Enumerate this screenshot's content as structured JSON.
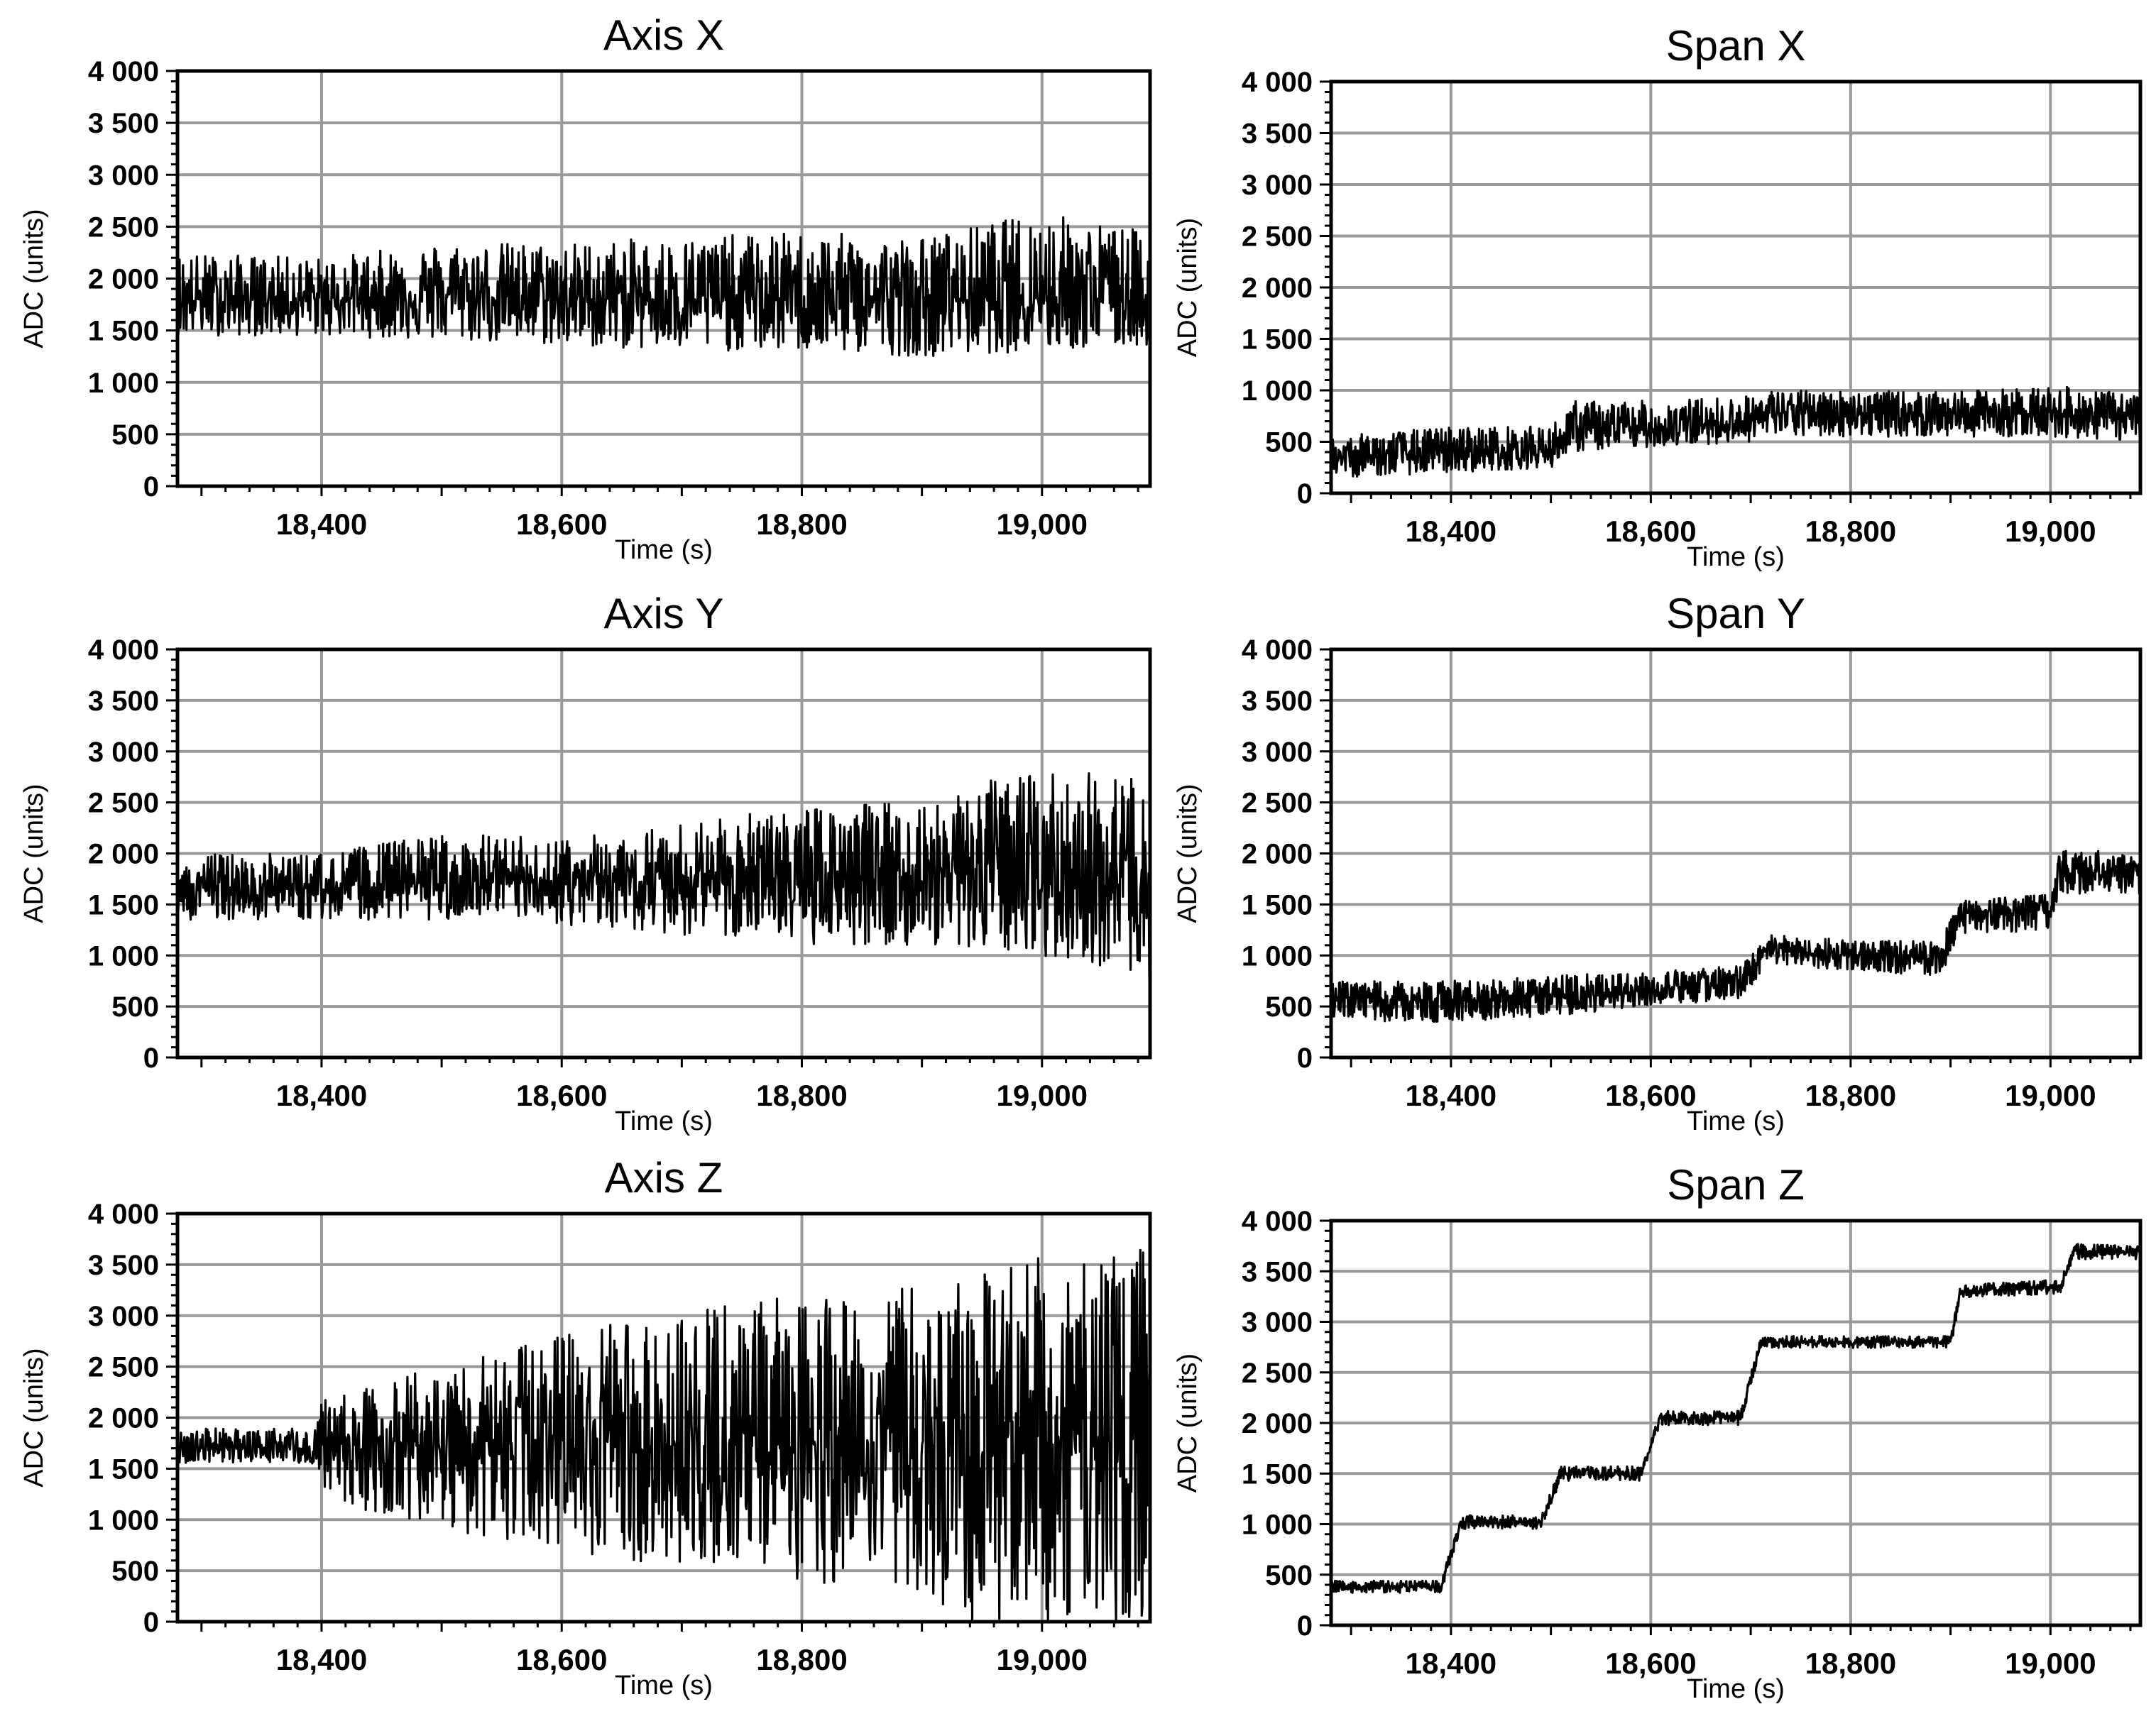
{
  "chart_data": [
    {
      "type": "line",
      "title": "Axis X",
      "xlabel": "Time (s)",
      "ylabel": "ADC (units)",
      "xlim": [
        18280,
        19090
      ],
      "ylim": [
        0,
        4000
      ],
      "grid": true,
      "xticks": [
        18400,
        18600,
        18800,
        19000
      ],
      "xtick_labels": [
        "18,400",
        "18,600",
        "18,800",
        "19,000"
      ],
      "yticks": [
        0,
        500,
        1000,
        1500,
        2000,
        2500,
        3000,
        3500,
        4000
      ],
      "ytick_labels": [
        "0",
        "500",
        "1 000",
        "1 500",
        "2 000",
        "2 500",
        "3 000",
        "3 500",
        "4 000"
      ],
      "series": [
        {
          "x": [
            18280,
            18400,
            18500,
            18600,
            18700,
            18800,
            18900,
            19000,
            19090
          ],
          "center": [
            1800,
            1800,
            1850,
            1800,
            1800,
            1800,
            1800,
            1850,
            1800
          ],
          "min": [
            1450,
            1450,
            1400,
            1350,
            1300,
            1300,
            1250,
            1300,
            1350
          ],
          "max": [
            2250,
            2200,
            2350,
            2350,
            2400,
            2450,
            2400,
            2650,
            2450
          ]
        }
      ]
    },
    {
      "type": "line",
      "title": "Span X",
      "xlabel": "Time (s)",
      "ylabel": "ADC (units)",
      "xlim": [
        18280,
        19090
      ],
      "ylim": [
        0,
        4000
      ],
      "grid": true,
      "xticks": [
        18400,
        18600,
        18800,
        19000
      ],
      "xtick_labels": [
        "18,400",
        "18,600",
        "18,800",
        "19,000"
      ],
      "yticks": [
        0,
        500,
        1000,
        1500,
        2000,
        2500,
        3000,
        3500,
        4000
      ],
      "ytick_labels": [
        "0",
        "500",
        "1 000",
        "1 500",
        "2 000",
        "2 500",
        "3 000",
        "3 500",
        "4 000"
      ],
      "series": [
        {
          "x": [
            18280,
            18400,
            18500,
            18520,
            18600,
            18700,
            18720,
            18800,
            18900,
            19000,
            19090
          ],
          "center": [
            330,
            400,
            420,
            600,
            620,
            700,
            780,
            780,
            770,
            780,
            720
          ],
          "min": [
            150,
            200,
            250,
            400,
            450,
            500,
            550,
            550,
            550,
            550,
            500
          ],
          "max": [
            550,
            650,
            650,
            900,
            900,
            950,
            1000,
            1000,
            980,
            1050,
            950
          ]
        }
      ]
    },
    {
      "type": "line",
      "title": "Axis Y",
      "xlabel": "Time (s)",
      "ylabel": "ADC (units)",
      "xlim": [
        18280,
        19090
      ],
      "ylim": [
        0,
        4000
      ],
      "grid": true,
      "xticks": [
        18400,
        18600,
        18800,
        19000
      ],
      "xtick_labels": [
        "18,400",
        "18,600",
        "18,800",
        "19,000"
      ],
      "yticks": [
        0,
        500,
        1000,
        1500,
        2000,
        2500,
        3000,
        3500,
        4000
      ],
      "ytick_labels": [
        "0",
        "500",
        "1 000",
        "1 500",
        "2 000",
        "2 500",
        "3 000",
        "3 500",
        "4 000"
      ],
      "series": [
        {
          "x": [
            18280,
            18400,
            18500,
            18600,
            18700,
            18800,
            18900,
            18950,
            19000,
            19050,
            19090
          ],
          "center": [
            1650,
            1650,
            1700,
            1700,
            1750,
            1750,
            1800,
            1800,
            1750,
            1700,
            1650
          ],
          "min": [
            1350,
            1350,
            1350,
            1300,
            1200,
            1100,
            1100,
            1050,
            1000,
            900,
            700
          ],
          "max": [
            2000,
            2000,
            2200,
            2150,
            2300,
            2450,
            2550,
            2700,
            2800,
            2800,
            2700
          ]
        }
      ]
    },
    {
      "type": "line",
      "title": "Span Y",
      "xlabel": "Time (s)",
      "ylabel": "ADC (units)",
      "xlim": [
        18280,
        19090
      ],
      "ylim": [
        0,
        4000
      ],
      "grid": true,
      "xticks": [
        18400,
        18600,
        18800,
        19000
      ],
      "xtick_labels": [
        "18,400",
        "18,600",
        "18,800",
        "19,000"
      ],
      "yticks": [
        0,
        500,
        1000,
        1500,
        2000,
        2500,
        3000,
        3500,
        4000
      ],
      "ytick_labels": [
        "0",
        "500",
        "1 000",
        "1 500",
        "2 000",
        "2 500",
        "3 000",
        "3 500",
        "4 000"
      ],
      "series": [
        {
          "x": [
            18280,
            18400,
            18500,
            18600,
            18690,
            18720,
            18800,
            18890,
            18910,
            19000,
            19010,
            19090
          ],
          "center": [
            550,
            550,
            600,
            650,
            750,
            1050,
            1000,
            1000,
            1400,
            1450,
            1800,
            1800
          ],
          "min": [
            350,
            350,
            400,
            500,
            550,
            900,
            850,
            800,
            1200,
            1250,
            1600,
            1600
          ],
          "max": [
            750,
            750,
            800,
            850,
            900,
            1200,
            1150,
            1150,
            1550,
            1600,
            2050,
            2000
          ]
        }
      ]
    },
    {
      "type": "line",
      "title": "Axis Z",
      "xlabel": "Time (s)",
      "ylabel": "ADC (units)",
      "xlim": [
        18280,
        19090
      ],
      "ylim": [
        0,
        4000
      ],
      "grid": true,
      "xticks": [
        18400,
        18600,
        18800,
        19000
      ],
      "xtick_labels": [
        "18,400",
        "18,600",
        "18,800",
        "19,000"
      ],
      "yticks": [
        0,
        500,
        1000,
        1500,
        2000,
        2500,
        3000,
        3500,
        4000
      ],
      "ytick_labels": [
        "0",
        "500",
        "1 000",
        "1 500",
        "2 000",
        "2 500",
        "3 000",
        "3 500",
        "4 000"
      ],
      "series": [
        {
          "x": [
            18280,
            18395,
            18400,
            18500,
            18600,
            18700,
            18800,
            18900,
            18920,
            19000,
            19090
          ],
          "center": [
            1700,
            1700,
            1750,
            1750,
            1750,
            1750,
            1750,
            1750,
            1750,
            1750,
            1750
          ],
          "min": [
            1550,
            1550,
            1200,
            900,
            700,
            500,
            400,
            300,
            0,
            0,
            0
          ],
          "max": [
            1900,
            1900,
            2200,
            2500,
            2800,
            3100,
            3200,
            3300,
            3300,
            3600,
            3650
          ]
        }
      ]
    },
    {
      "type": "line",
      "title": "Span Z",
      "xlabel": "Time (s)",
      "ylabel": "ADC (units)",
      "xlim": [
        18280,
        19090
      ],
      "ylim": [
        0,
        4000
      ],
      "grid": true,
      "xticks": [
        18400,
        18600,
        18800,
        19000
      ],
      "xtick_labels": [
        "18,400",
        "18,600",
        "18,800",
        "19,000"
      ],
      "yticks": [
        0,
        500,
        1000,
        1500,
        2000,
        2500,
        3000,
        3500,
        4000
      ],
      "ytick_labels": [
        "0",
        "500",
        "1 000",
        "1 500",
        "2 000",
        "2 500",
        "3 000",
        "3 500",
        "4 000"
      ],
      "series": [
        {
          "x": [
            18280,
            18390,
            18410,
            18490,
            18510,
            18590,
            18610,
            18690,
            18710,
            18900,
            18910,
            19010,
            19025,
            19090
          ],
          "center": [
            380,
            380,
            1020,
            1020,
            1500,
            1500,
            2050,
            2050,
            2800,
            2800,
            3300,
            3350,
            3700,
            3680
          ],
          "min": [
            320,
            320,
            950,
            950,
            1430,
            1430,
            1980,
            1980,
            2740,
            2740,
            3230,
            3280,
            3620,
            3620
          ],
          "max": [
            440,
            440,
            1090,
            1090,
            1570,
            1570,
            2120,
            2120,
            2860,
            2860,
            3370,
            3420,
            3770,
            3750
          ]
        }
      ]
    }
  ]
}
